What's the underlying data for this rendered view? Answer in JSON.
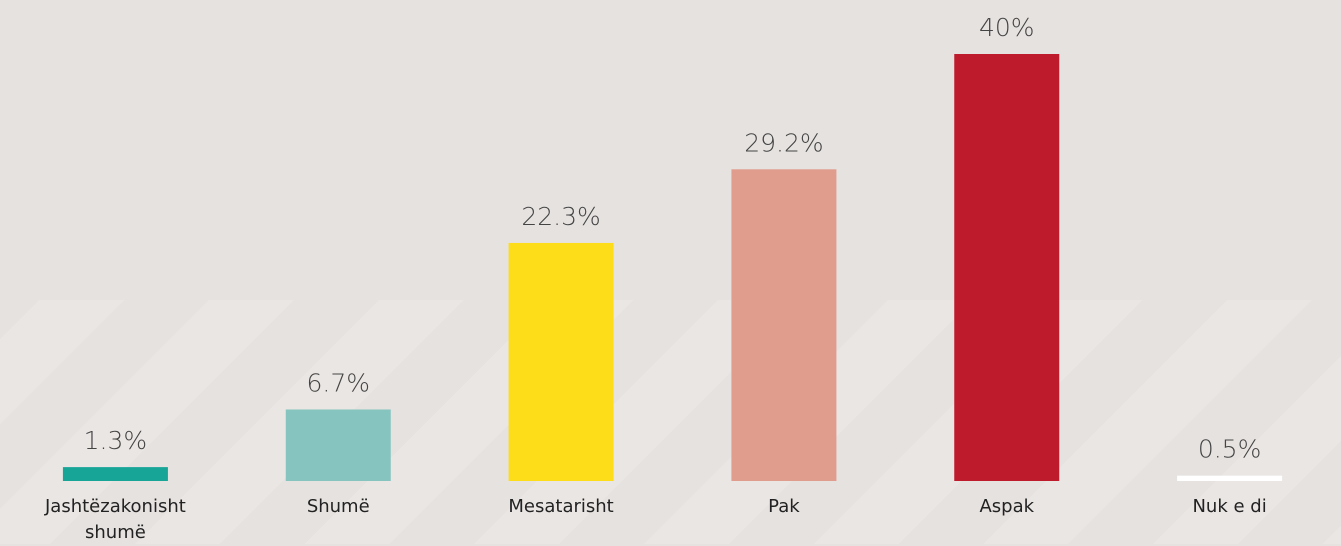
{
  "chart_data": {
    "type": "bar",
    "categories": [
      "Jashtëzakonisht shumë",
      "Shumë",
      "Mesatarisht",
      "Pak",
      "Aspak",
      "Nuk e di"
    ],
    "values": [
      1.3,
      6.7,
      22.3,
      29.2,
      40,
      0.5
    ],
    "value_labels": [
      "1.3%",
      "6.7%",
      "22.3%",
      "29.2%",
      "40%",
      "0.5%"
    ],
    "colors": [
      "#16a596",
      "#86c4bf",
      "#fddd1a",
      "#e09d8d",
      "#be1c2d",
      "#ffffff"
    ]
  }
}
